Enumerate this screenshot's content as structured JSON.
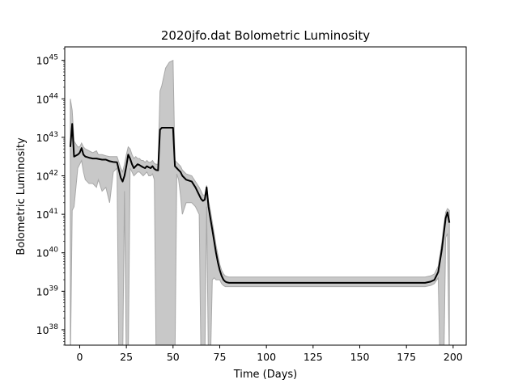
{
  "chart_data": {
    "type": "line",
    "title": "2020jfo.dat Bolometric Luminosity",
    "xlabel": "Time (Days)",
    "ylabel": "Bolometric Luminosity",
    "xlim": [
      -8,
      207
    ],
    "xticks": [
      0,
      25,
      50,
      75,
      100,
      125,
      150,
      175,
      200
    ],
    "ylog": true,
    "ylim_exp": [
      37.6,
      45.35
    ],
    "yticks_exp": [
      38,
      39,
      40,
      41,
      42,
      43,
      44,
      45
    ],
    "grid": false,
    "colors": {
      "line": "#000000",
      "band": "#c8c8c8",
      "band_edge": "#a8a8a8"
    },
    "series": [
      {
        "x": [
          -5,
          -4,
          -3,
          -1,
          0,
          1,
          2,
          3,
          5,
          7,
          9,
          10,
          12,
          14,
          16,
          18,
          20,
          21,
          22,
          23,
          24,
          25,
          26,
          27,
          28,
          29,
          30,
          31,
          32,
          33,
          34,
          35,
          36,
          37,
          38,
          39,
          40,
          41,
          42,
          43,
          44,
          46,
          48,
          50,
          51,
          52,
          53,
          54,
          55,
          57,
          60,
          62,
          64,
          65,
          66,
          67,
          68,
          69,
          70,
          71,
          72,
          73,
          74,
          75,
          76,
          77,
          78,
          79,
          80,
          82,
          85,
          90,
          100,
          125,
          150,
          175,
          180,
          185,
          188,
          190,
          192,
          193,
          194,
          195,
          196,
          197,
          198
        ],
        "log_lum": [
          42.75,
          43.35,
          42.5,
          42.55,
          42.6,
          42.72,
          42.55,
          42.5,
          42.47,
          42.45,
          42.45,
          42.44,
          42.42,
          42.42,
          42.38,
          42.36,
          42.35,
          42.15,
          41.95,
          41.85,
          42.0,
          42.25,
          42.55,
          42.45,
          42.3,
          42.2,
          42.25,
          42.3,
          42.28,
          42.25,
          42.22,
          42.2,
          42.25,
          42.22,
          42.2,
          42.25,
          42.18,
          42.15,
          42.14,
          43.2,
          43.25,
          43.25,
          43.25,
          43.25,
          42.25,
          42.2,
          42.15,
          42.1,
          42.0,
          41.9,
          41.85,
          41.7,
          41.5,
          41.4,
          41.35,
          41.38,
          41.7,
          41.2,
          40.9,
          40.6,
          40.3,
          40.0,
          39.75,
          39.55,
          39.4,
          39.3,
          39.25,
          39.23,
          39.22,
          39.22,
          39.22,
          39.22,
          39.22,
          39.22,
          39.22,
          39.22,
          39.22,
          39.22,
          39.25,
          39.3,
          39.5,
          39.8,
          40.1,
          40.5,
          40.9,
          41.05,
          40.78
        ]
      }
    ],
    "uncertainty_band": {
      "x": [
        -5,
        -4,
        -3,
        -1,
        0,
        1,
        2,
        3,
        5,
        7,
        9,
        10,
        12,
        14,
        16,
        18,
        20,
        21,
        22,
        23,
        24,
        25,
        26,
        27,
        28,
        29,
        30,
        31,
        32,
        33,
        34,
        35,
        36,
        37,
        38,
        39,
        40,
        41,
        42,
        43,
        44,
        46,
        48,
        50,
        51,
        52,
        53,
        54,
        55,
        57,
        60,
        62,
        64,
        65,
        66,
        67,
        68,
        69,
        70,
        71,
        72,
        73,
        74,
        75,
        76,
        77,
        78,
        79,
        80,
        82,
        85,
        90,
        100,
        125,
        150,
        175,
        180,
        185,
        188,
        190,
        192,
        193,
        194,
        195,
        196,
        197,
        198
      ],
      "upper": [
        44.0,
        43.7,
        42.9,
        42.75,
        42.75,
        42.85,
        42.75,
        42.7,
        42.65,
        42.6,
        42.65,
        42.55,
        42.55,
        42.52,
        42.5,
        42.5,
        42.5,
        42.35,
        42.2,
        42.1,
        42.3,
        42.55,
        42.75,
        42.7,
        42.55,
        42.45,
        42.5,
        42.45,
        42.45,
        42.4,
        42.4,
        42.35,
        42.4,
        42.35,
        42.35,
        42.4,
        42.32,
        42.3,
        42.3,
        44.2,
        44.35,
        44.8,
        44.95,
        45.0,
        42.4,
        42.35,
        42.3,
        42.25,
        42.15,
        42.05,
        42.0,
        41.85,
        41.7,
        41.6,
        41.5,
        41.5,
        41.75,
        41.35,
        41.1,
        40.8,
        40.5,
        40.2,
        39.95,
        39.7,
        39.55,
        39.45,
        39.4,
        39.38,
        39.37,
        39.37,
        39.37,
        39.37,
        39.37,
        39.37,
        39.37,
        39.37,
        39.37,
        39.37,
        39.4,
        39.45,
        39.65,
        39.95,
        40.3,
        40.7,
        41.05,
        41.15,
        41.1
      ],
      "lower": [
        37.0,
        41.1,
        41.2,
        42.2,
        42.3,
        42.4,
        42.1,
        41.9,
        41.8,
        41.8,
        41.7,
        41.9,
        41.6,
        41.7,
        41.3,
        42.1,
        42.2,
        37.0,
        37.0,
        37.0,
        41.6,
        37.0,
        37.0,
        42.2,
        42.1,
        42.0,
        42.05,
        42.1,
        42.1,
        42.05,
        42.0,
        42.05,
        42.1,
        42.0,
        42.0,
        42.05,
        41.9,
        37.0,
        37.0,
        37.0,
        37.0,
        37.0,
        37.0,
        37.0,
        37.0,
        42.05,
        41.9,
        41.5,
        41.0,
        41.3,
        41.3,
        41.2,
        41.0,
        37.0,
        37.0,
        37.0,
        41.2,
        37.0,
        37.0,
        39.3,
        39.35,
        39.3,
        39.3,
        39.3,
        39.2,
        39.15,
        39.12,
        39.12,
        39.12,
        39.12,
        39.12,
        39.12,
        39.12,
        39.12,
        39.12,
        39.12,
        39.12,
        39.12,
        39.15,
        39.2,
        39.35,
        37.0,
        37.0,
        37.0,
        40.4,
        40.5,
        37.0
      ]
    }
  }
}
